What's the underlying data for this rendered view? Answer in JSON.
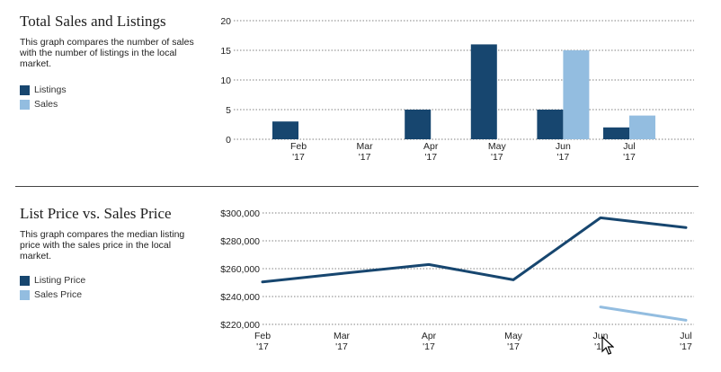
{
  "panel1": {
    "title": "Total Sales and Listings",
    "description": "This graph compares the number of sales with the number of listings in the local market.",
    "legend": [
      {
        "label": "Listings",
        "color": "#17466f"
      },
      {
        "label": "Sales",
        "color": "#93bde0"
      }
    ]
  },
  "panel2": {
    "title": "List Price vs. Sales Price",
    "description": "This graph compares the median listing price with the sales price in the local market.",
    "legend": [
      {
        "label": "Listing Price",
        "color": "#17466f"
      },
      {
        "label": "Sales Price",
        "color": "#93bde0"
      }
    ]
  },
  "chart_data": [
    {
      "type": "bar",
      "categories": [
        "Feb '17",
        "Mar '17",
        "Apr '17",
        "May '17",
        "Jun '17",
        "Jul '17"
      ],
      "series": [
        {
          "name": "Listings",
          "color": "#17466f",
          "values": [
            3,
            0,
            5,
            16,
            5,
            2
          ]
        },
        {
          "name": "Sales",
          "color": "#93bde0",
          "values": [
            0,
            0,
            0,
            0,
            15,
            4
          ]
        }
      ],
      "ylim": [
        0,
        20
      ],
      "yticks": [
        "0",
        "5",
        "10",
        "15",
        "20"
      ],
      "grid": true
    },
    {
      "type": "line",
      "categories": [
        "Feb '17",
        "Mar '17",
        "Apr '17",
        "May '17",
        "Jun '17",
        "Jul '17"
      ],
      "series": [
        {
          "name": "Listing Price",
          "color": "#17466f",
          "values": [
            250500,
            256500,
            263000,
            252000,
            296500,
            289500
          ]
        },
        {
          "name": "Sales Price",
          "color": "#93bde0",
          "values": [
            null,
            null,
            null,
            null,
            232500,
            223000
          ]
        }
      ],
      "ylim": [
        220000,
        300000
      ],
      "yticks": [
        "$220,000",
        "$240,000",
        "$260,000",
        "$280,000",
        "$300,000"
      ],
      "grid": true
    }
  ]
}
